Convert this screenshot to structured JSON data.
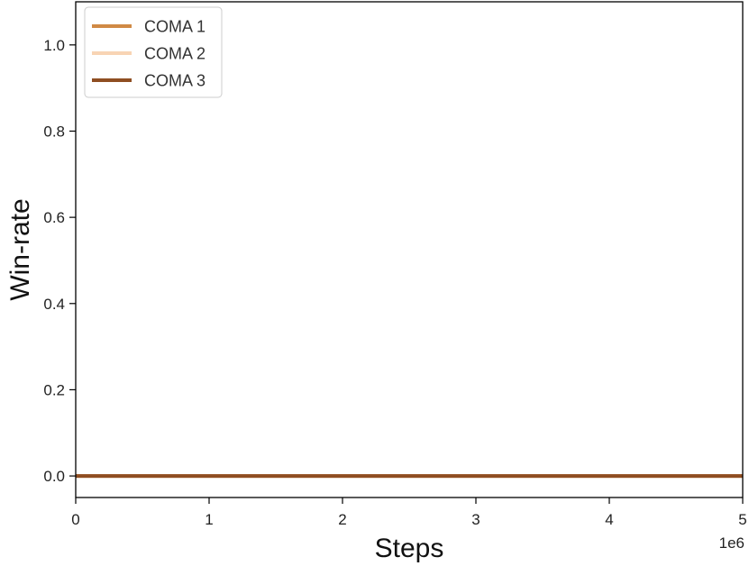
{
  "chart_data": {
    "type": "line",
    "xlabel": "Steps",
    "ylabel": "Win-rate",
    "x_offset_label": "1e6",
    "xlim": [
      0,
      5
    ],
    "ylim": [
      -0.05,
      1.1
    ],
    "x_ticks": [
      0,
      1,
      2,
      3,
      4,
      5
    ],
    "x_tick_labels": [
      "0",
      "1",
      "2",
      "3",
      "4",
      "5"
    ],
    "y_ticks": [
      0.0,
      0.2,
      0.4,
      0.6,
      0.8,
      1.0
    ],
    "y_tick_labels": [
      "0.0",
      "0.2",
      "0.4",
      "0.6",
      "0.8",
      "1.0"
    ],
    "grid": false,
    "legend_position": "top-left",
    "series": [
      {
        "name": "COMA 1",
        "color": "#d08a45",
        "x": [
          0,
          5
        ],
        "y": [
          0.0,
          0.0
        ]
      },
      {
        "name": "COMA 2",
        "color": "#f8d4b4",
        "x": [
          0,
          5
        ],
        "y": [
          0.0,
          0.0
        ]
      },
      {
        "name": "COMA 3",
        "color": "#8f4e22",
        "x": [
          0,
          5
        ],
        "y": [
          0.0,
          0.0
        ]
      }
    ]
  }
}
